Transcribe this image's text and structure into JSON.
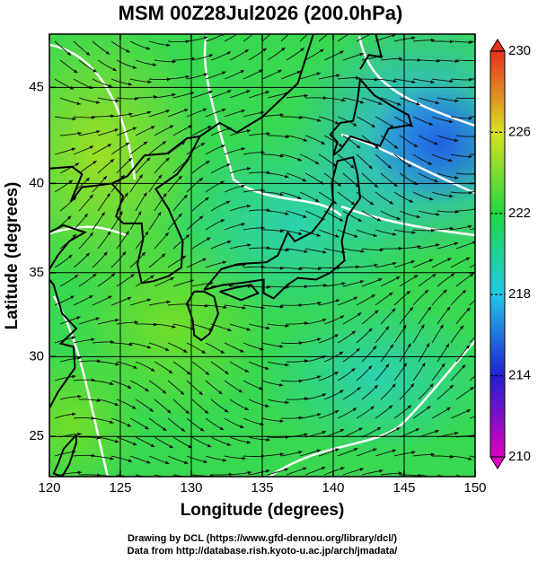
{
  "chart_data": {
    "type": "map",
    "title": "MSM 00Z28Jul2026 (200.0hPa)",
    "x_label": "Longitude (degrees)",
    "y_label": "Latitude  (degrees)",
    "xlim": [
      120,
      150
    ],
    "ylim": [
      22.4,
      47.6
    ],
    "y_scale": "mercator",
    "xticks": [
      120,
      125,
      130,
      135,
      140,
      145,
      150
    ],
    "yticks": [
      25,
      30,
      35,
      40,
      45
    ],
    "grid": true,
    "colorbar": {
      "lim": [
        210,
        230
      ],
      "ticks": [
        210,
        214,
        218,
        222,
        226,
        230
      ],
      "colors": [
        "#e000c0",
        "#2020d0",
        "#20c8e8",
        "#20d840",
        "#d8e020",
        "#e83020"
      ]
    },
    "credits": [
      "Drawing by DCL (https://www.gfd-dennou.org/library/dcl/)",
      "Data from http://database.rish.kyoto-u.ac.jp/arch/jmadata/"
    ]
  }
}
